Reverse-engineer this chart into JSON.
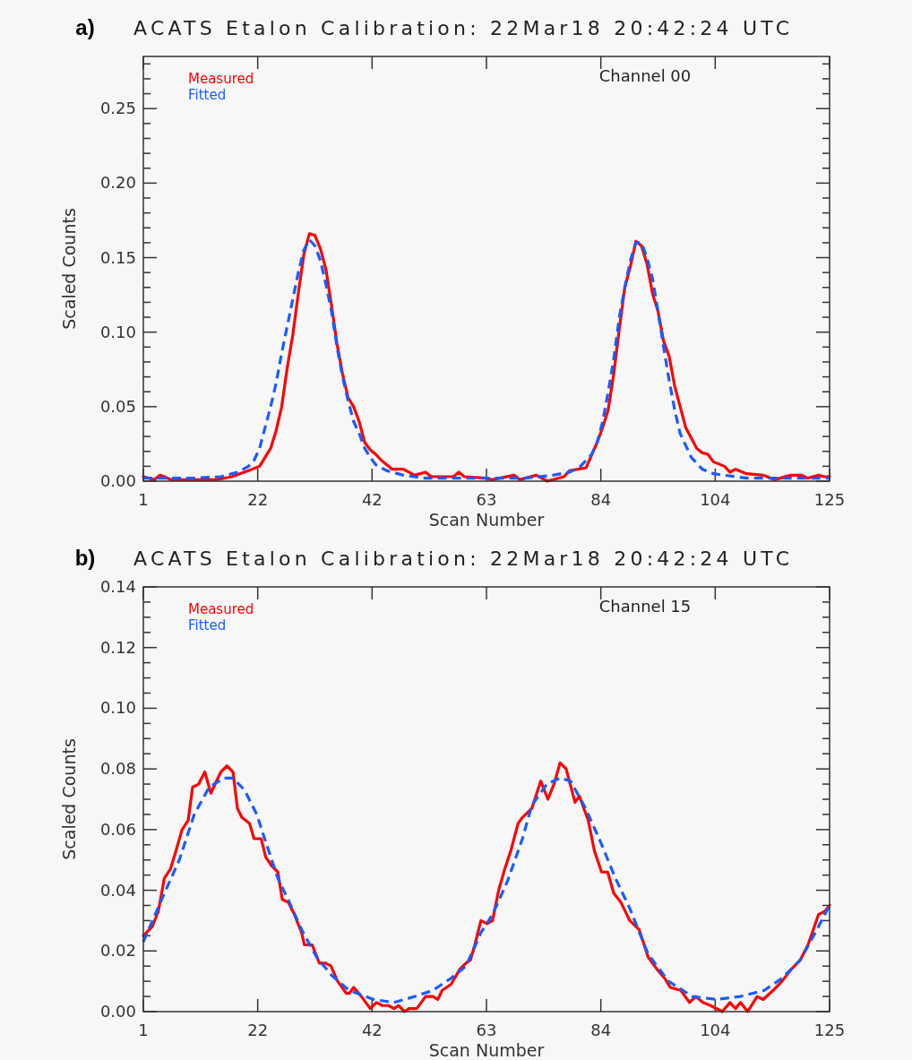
{
  "chart_data": [
    {
      "type": "line",
      "title": "ACATS Etalon Calibration: 22Mar18 20:42:24 UTC",
      "xlabel": "Scan Number",
      "ylabel": "Scaled Counts",
      "annotations": [
        "a)",
        "Channel 00"
      ],
      "legend": "top left",
      "grid": false,
      "xlim": [
        1,
        125
      ],
      "xticks": [
        1,
        {
          "value": 21.667,
          "label": "22"
        },
        {
          "value": 42.333,
          "label": "42"
        },
        63,
        {
          "value": 83.667,
          "label": "84"
        },
        {
          "value": 104.333,
          "label": "104"
        },
        125
      ],
      "ylim": [
        0,
        0.285
      ],
      "yticks": [
        {
          "value": 0,
          "label": "0.00"
        },
        {
          "value": 0.01,
          "label": null
        },
        {
          "value": 0.02,
          "label": null
        },
        {
          "value": 0.03,
          "label": null
        },
        {
          "value": 0.04,
          "label": null
        },
        {
          "value": 0.05,
          "label": "0.05"
        },
        {
          "value": 0.06,
          "label": null
        },
        {
          "value": 0.07,
          "label": null
        },
        {
          "value": 0.08,
          "label": null
        },
        {
          "value": 0.09,
          "label": null
        },
        {
          "value": 0.1,
          "label": "0.10"
        },
        {
          "value": 0.11,
          "label": null
        },
        {
          "value": 0.12,
          "label": null
        },
        {
          "value": 0.13,
          "label": null
        },
        {
          "value": 0.14,
          "label": null
        },
        {
          "value": 0.15,
          "label": "0.15"
        },
        {
          "value": 0.16,
          "label": null
        },
        {
          "value": 0.17,
          "label": null
        },
        {
          "value": 0.18,
          "label": null
        },
        {
          "value": 0.19,
          "label": null
        },
        {
          "value": 0.2,
          "label": "0.20"
        },
        {
          "value": 0.21,
          "label": null
        },
        {
          "value": 0.22,
          "label": null
        },
        {
          "value": 0.23,
          "label": null
        },
        {
          "value": 0.24,
          "label": null
        },
        {
          "value": 0.25,
          "label": "0.25"
        },
        {
          "value": 0.26,
          "label": null
        },
        {
          "value": 0.27,
          "label": null
        },
        {
          "value": 0.28,
          "label": null
        }
      ],
      "series": [
        {
          "name": "Measured",
          "color": "#ff0000",
          "line_style": "solid",
          "x": [
            1,
            3,
            4,
            6,
            14,
            17,
            20,
            22,
            24,
            25,
            26,
            27,
            28,
            29,
            30,
            31,
            32,
            33,
            34,
            35,
            36,
            37,
            38,
            39,
            40,
            41,
            42,
            43,
            44,
            46,
            48,
            50,
            52,
            53,
            57,
            58,
            59,
            63,
            64,
            68,
            69,
            72,
            74,
            77,
            78,
            81,
            83,
            84,
            85,
            86,
            87,
            88,
            89,
            90,
            91,
            92,
            93,
            94,
            95,
            96,
            97,
            98,
            99,
            100,
            101,
            102,
            103,
            104,
            106,
            107,
            108,
            110,
            113,
            115,
            118,
            120,
            121,
            123,
            124,
            125
          ],
          "values": [
            0.003,
            0.001,
            0.004,
            0.001,
            0.001,
            0.003,
            0.007,
            0.01,
            0.022,
            0.034,
            0.05,
            0.076,
            0.098,
            0.126,
            0.152,
            0.166,
            0.165,
            0.156,
            0.142,
            0.118,
            0.092,
            0.072,
            0.056,
            0.05,
            0.04,
            0.026,
            0.021,
            0.018,
            0.014,
            0.008,
            0.008,
            0.004,
            0.006,
            0.003,
            0.003,
            0.006,
            0.003,
            0.002,
            0.001,
            0.004,
            0.001,
            0.004,
            0,
            0.003,
            0.007,
            0.009,
            0.026,
            0.036,
            0.048,
            0.072,
            0.102,
            0.13,
            0.144,
            0.161,
            0.158,
            0.146,
            0.126,
            0.114,
            0.094,
            0.084,
            0.064,
            0.05,
            0.036,
            0.029,
            0.022,
            0.019,
            0.018,
            0.013,
            0.01,
            0.006,
            0.008,
            0.005,
            0.004,
            0.001,
            0.004,
            0.004,
            0.002,
            0.004,
            0.003,
            0.003
          ]
        },
        {
          "name": "Fitted",
          "color": "#1a5cff",
          "line_style": "dashed",
          "x": [
            1,
            10,
            15,
            18,
            20,
            21,
            22,
            23,
            24,
            25,
            26,
            27,
            28,
            29,
            30,
            31,
            32,
            33,
            34,
            35,
            36,
            37,
            38,
            39,
            40,
            41,
            42,
            43,
            45,
            48,
            52,
            60,
            70,
            75,
            78,
            80,
            82,
            83,
            84,
            85,
            86,
            87,
            88,
            89,
            90,
            91,
            92,
            93,
            94,
            95,
            96,
            97,
            98,
            99,
            100,
            101,
            102,
            104,
            110,
            125
          ],
          "values": [
            0.002,
            0.002,
            0.003,
            0.006,
            0.01,
            0.014,
            0.022,
            0.036,
            0.05,
            0.066,
            0.086,
            0.104,
            0.122,
            0.14,
            0.155,
            0.162,
            0.158,
            0.148,
            0.132,
            0.114,
            0.09,
            0.07,
            0.054,
            0.04,
            0.032,
            0.022,
            0.016,
            0.011,
            0.007,
            0.004,
            0.002,
            0.002,
            0.002,
            0.004,
            0.006,
            0.01,
            0.018,
            0.026,
            0.04,
            0.06,
            0.082,
            0.11,
            0.13,
            0.148,
            0.16,
            0.16,
            0.15,
            0.136,
            0.114,
            0.09,
            0.068,
            0.048,
            0.032,
            0.024,
            0.016,
            0.012,
            0.008,
            0.005,
            0.002,
            0.002
          ]
        }
      ]
    },
    {
      "type": "line",
      "title": "ACATS Etalon Calibration: 22Mar18 20:42:24 UTC",
      "xlabel": "Scan Number",
      "ylabel": "Scaled Counts",
      "annotations": [
        "b)",
        "Channel 15"
      ],
      "legend": "top left",
      "grid": false,
      "xlim": [
        1,
        125
      ],
      "xticks": [
        1,
        {
          "value": 21.667,
          "label": "22"
        },
        {
          "value": 42.333,
          "label": "42"
        },
        63,
        {
          "value": 83.667,
          "label": "84"
        },
        {
          "value": 104.333,
          "label": "104"
        },
        125
      ],
      "ylim": [
        0,
        0.14
      ],
      "yticks": [
        {
          "value": 0,
          "label": "0.00"
        },
        {
          "value": 0.005,
          "label": null
        },
        {
          "value": 0.01,
          "label": null
        },
        {
          "value": 0.015,
          "label": null
        },
        {
          "value": 0.02,
          "label": "0.02"
        },
        {
          "value": 0.025,
          "label": null
        },
        {
          "value": 0.03,
          "label": null
        },
        {
          "value": 0.035,
          "label": null
        },
        {
          "value": 0.04,
          "label": "0.04"
        },
        {
          "value": 0.045,
          "label": null
        },
        {
          "value": 0.05,
          "label": null
        },
        {
          "value": 0.055,
          "label": null
        },
        {
          "value": 0.06,
          "label": "0.06"
        },
        {
          "value": 0.065,
          "label": null
        },
        {
          "value": 0.07,
          "label": null
        },
        {
          "value": 0.075,
          "label": null
        },
        {
          "value": 0.08,
          "label": "0.08"
        },
        {
          "value": 0.085,
          "label": null
        },
        {
          "value": 0.09,
          "label": null
        },
        {
          "value": 0.095,
          "label": null
        },
        {
          "value": 0.1,
          "label": "0.10"
        },
        {
          "value": 0.105,
          "label": null
        },
        {
          "value": 0.11,
          "label": null
        },
        {
          "value": 0.115,
          "label": null
        },
        {
          "value": 0.12,
          "label": "0.12"
        },
        {
          "value": 0.125,
          "label": null
        },
        {
          "value": 0.13,
          "label": null
        },
        {
          "value": 0.135,
          "label": null
        },
        {
          "value": 0.14,
          "label": "0.14"
        }
      ],
      "series": [
        {
          "name": "Measured",
          "color": "#ff0000",
          "line_style": "solid",
          "x": [
            1,
            2.6,
            3.7,
            4.8,
            5.9,
            6.9,
            8,
            9.1,
            9.9,
            11,
            12.1,
            13.2,
            15,
            16.1,
            17.2,
            18,
            18.8,
            20.2,
            21,
            22.3,
            23.1,
            24.2,
            25.3,
            26.1,
            27.2,
            28.3,
            29.6,
            30.1,
            31.5,
            32.8,
            33.9,
            34.9,
            36.1,
            37.7,
            38.2,
            39,
            40.4,
            42,
            43.1,
            44.2,
            45.3,
            46.3,
            47.1,
            48.2,
            49,
            50.4,
            52,
            53.3,
            54.2,
            55,
            56.6,
            58.2,
            59.3,
            60.1,
            60.9,
            62,
            63.1,
            64.1,
            65.2,
            66.3,
            67.4,
            68.7,
            69.5,
            71.2,
            72.8,
            74.1,
            75.2,
            76.3,
            77.4,
            79,
            79.8,
            81.4,
            82.5,
            83.8,
            84.9,
            86,
            87.3,
            88.9,
            90.6,
            92.2,
            93.8,
            95.2,
            96.2,
            98.1,
            99.7,
            100.8,
            102.1,
            103.5,
            105.6,
            107,
            108,
            108.9,
            110.2,
            111.9,
            113,
            114.8,
            116.4,
            118.1,
            119.7,
            121.1,
            123,
            124.1,
            125
          ],
          "values": [
            0.025,
            0.028,
            0.033,
            0.044,
            0.047,
            0.053,
            0.06,
            0.063,
            0.074,
            0.075,
            0.079,
            0.072,
            0.079,
            0.081,
            0.079,
            0.067,
            0.064,
            0.062,
            0.057,
            0.057,
            0.051,
            0.048,
            0.046,
            0.037,
            0.036,
            0.032,
            0.026,
            0.022,
            0.022,
            0.016,
            0.016,
            0.015,
            0.01,
            0.006,
            0.006,
            0.008,
            0.005,
            0.001,
            0.003,
            0.002,
            0.002,
            0.001,
            0.002,
            0,
            0.001,
            0.001,
            0.005,
            0.005,
            0.004,
            0.007,
            0.009,
            0.014,
            0.016,
            0.017,
            0.022,
            0.03,
            0.029,
            0.03,
            0.04,
            0.047,
            0.053,
            0.062,
            0.064,
            0.067,
            0.076,
            0.07,
            0.075,
            0.082,
            0.08,
            0.069,
            0.071,
            0.063,
            0.053,
            0.046,
            0.046,
            0.039,
            0.036,
            0.03,
            0.027,
            0.018,
            0.014,
            0.011,
            0.008,
            0.007,
            0.003,
            0.005,
            0.003,
            0.002,
            0,
            0.003,
            0.001,
            0.003,
            0,
            0.005,
            0.004,
            0.007,
            0.01,
            0.014,
            0.017,
            0.022,
            0.032,
            0.033,
            0.035
          ]
        },
        {
          "name": "Fitted",
          "color": "#1a5cff",
          "line_style": "dashed",
          "x": [
            1,
            4.8,
            7.5,
            10.2,
            12.9,
            15.6,
            17.2,
            19.3,
            21.5,
            23.1,
            25.3,
            27.4,
            29.6,
            32.3,
            35,
            38.2,
            42.6,
            46.3,
            50.1,
            53.3,
            56.6,
            59.3,
            62,
            64.1,
            66.8,
            69.5,
            71.2,
            73.9,
            76.3,
            78.2,
            80.9,
            83.6,
            86.3,
            88.9,
            92.2,
            95.9,
            100.2,
            104.6,
            108.9,
            113.2,
            116.4,
            119.7,
            122.4,
            125
          ],
          "values": [
            0.023,
            0.039,
            0.05,
            0.065,
            0.074,
            0.077,
            0.077,
            0.073,
            0.065,
            0.056,
            0.044,
            0.036,
            0.027,
            0.018,
            0.012,
            0.007,
            0.004,
            0.003,
            0.005,
            0.007,
            0.011,
            0.015,
            0.026,
            0.032,
            0.043,
            0.057,
            0.068,
            0.075,
            0.077,
            0.076,
            0.067,
            0.056,
            0.044,
            0.034,
            0.019,
            0.01,
            0.005,
            0.004,
            0.005,
            0.007,
            0.011,
            0.017,
            0.026,
            0.035
          ]
        }
      ]
    }
  ]
}
